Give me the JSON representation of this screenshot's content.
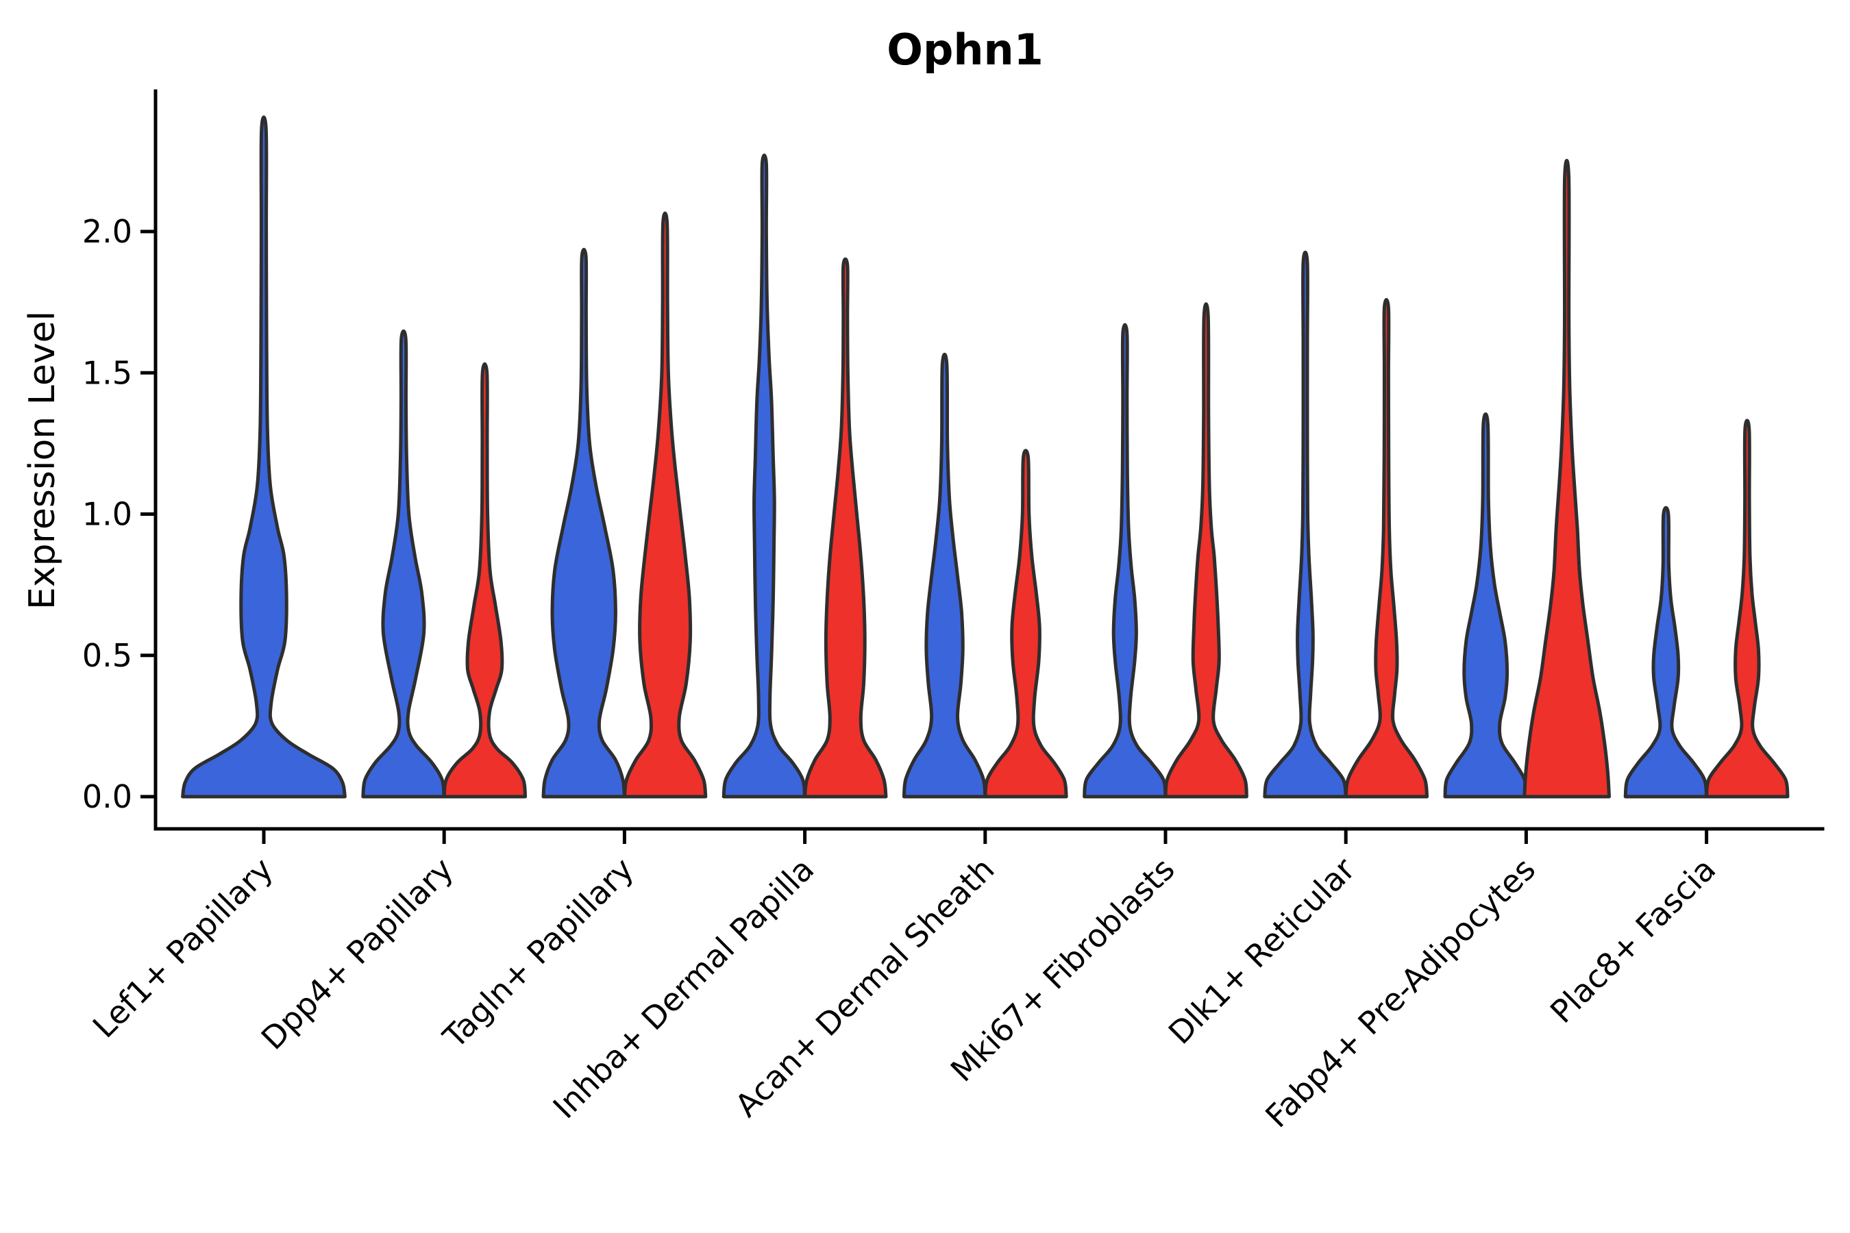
{
  "figure": {
    "title": "Ophn1",
    "y_axis": {
      "label": "Expression Level",
      "tick_labels": [
        "0.0",
        "0.5",
        "1.0",
        "1.5",
        "2.0"
      ]
    }
  },
  "colors": {
    "group_blue": "#3B65DB",
    "group_red": "#EE312B",
    "outline": "#2E2E2E",
    "axis": "#000000"
  },
  "chart_data": {
    "type": "violin",
    "title": "Ophn1",
    "xlabel": "",
    "ylabel": "Expression Level",
    "ylim": [
      -0.115,
      2.5
    ],
    "yticks": [
      0.0,
      0.5,
      1.0,
      1.5,
      2.0
    ],
    "ytick_labels": [
      "0.0",
      "0.5",
      "1.0",
      "1.5",
      "2.0"
    ],
    "x_tick_rotation": 45,
    "grid": false,
    "legend": "none",
    "categories": [
      "Lef1+ Papillary",
      "Dpp4+ Papillary",
      "Tagln+ Papillary",
      "Inhba+ Dermal Papilla",
      "Acan+ Dermal Sheath",
      "Mki67+ Fibroblasts",
      "Dlk1+ Reticular",
      "Fabp4+ Pre-Adipocytes",
      "Plac8+ Fascia"
    ],
    "groups": [
      {
        "id": "blue",
        "color": "#3B65DB"
      },
      {
        "id": "red",
        "color": "#EE312B"
      }
    ],
    "violins": [
      {
        "category": "Lef1+ Papillary",
        "group": "blue",
        "offset": 0.0,
        "half_width": 0.45,
        "max_expression": 2.36,
        "profile": [
          [
            0,
            1.0
          ],
          [
            0.05,
            0.97
          ],
          [
            0.1,
            0.85
          ],
          [
            0.15,
            0.55
          ],
          [
            0.2,
            0.28
          ],
          [
            0.26,
            0.1
          ],
          [
            0.33,
            0.09
          ],
          [
            0.45,
            0.17
          ],
          [
            0.55,
            0.26
          ],
          [
            0.7,
            0.28
          ],
          [
            0.85,
            0.25
          ],
          [
            0.95,
            0.17
          ],
          [
            1.1,
            0.08
          ],
          [
            1.3,
            0.045
          ],
          [
            1.6,
            0.035
          ],
          [
            2.0,
            0.03
          ],
          [
            2.36,
            0.028
          ]
        ]
      },
      {
        "category": "Dpp4+ Papillary",
        "group": "blue",
        "offset": -0.225,
        "half_width": 0.225,
        "max_expression": 1.62,
        "profile": [
          [
            0,
            1.0
          ],
          [
            0.06,
            0.95
          ],
          [
            0.12,
            0.7
          ],
          [
            0.18,
            0.32
          ],
          [
            0.23,
            0.13
          ],
          [
            0.3,
            0.12
          ],
          [
            0.42,
            0.3
          ],
          [
            0.58,
            0.5
          ],
          [
            0.72,
            0.45
          ],
          [
            0.85,
            0.28
          ],
          [
            1.0,
            0.13
          ],
          [
            1.2,
            0.075
          ],
          [
            1.4,
            0.06
          ],
          [
            1.62,
            0.055
          ]
        ]
      },
      {
        "category": "Dpp4+ Papillary",
        "group": "red",
        "offset": 0.225,
        "half_width": 0.225,
        "max_expression": 1.5,
        "profile": [
          [
            0,
            1.0
          ],
          [
            0.06,
            0.95
          ],
          [
            0.12,
            0.68
          ],
          [
            0.17,
            0.3
          ],
          [
            0.22,
            0.12
          ],
          [
            0.3,
            0.12
          ],
          [
            0.38,
            0.28
          ],
          [
            0.45,
            0.42
          ],
          [
            0.55,
            0.4
          ],
          [
            0.68,
            0.26
          ],
          [
            0.8,
            0.13
          ],
          [
            1.0,
            0.07
          ],
          [
            1.25,
            0.06
          ],
          [
            1.5,
            0.055
          ]
        ]
      },
      {
        "category": "Tagln+ Papillary",
        "group": "blue",
        "offset": -0.225,
        "half_width": 0.225,
        "max_expression": 1.91,
        "profile": [
          [
            0,
            1.0
          ],
          [
            0.06,
            0.96
          ],
          [
            0.13,
            0.78
          ],
          [
            0.2,
            0.45
          ],
          [
            0.27,
            0.38
          ],
          [
            0.38,
            0.55
          ],
          [
            0.52,
            0.72
          ],
          [
            0.65,
            0.78
          ],
          [
            0.8,
            0.72
          ],
          [
            0.95,
            0.52
          ],
          [
            1.1,
            0.3
          ],
          [
            1.25,
            0.14
          ],
          [
            1.45,
            0.07
          ],
          [
            1.7,
            0.055
          ],
          [
            1.91,
            0.05
          ]
        ]
      },
      {
        "category": "Tagln+ Papillary",
        "group": "red",
        "offset": 0.225,
        "half_width": 0.225,
        "max_expression": 2.03,
        "profile": [
          [
            0,
            1.0
          ],
          [
            0.06,
            0.95
          ],
          [
            0.13,
            0.72
          ],
          [
            0.2,
            0.4
          ],
          [
            0.28,
            0.35
          ],
          [
            0.4,
            0.52
          ],
          [
            0.55,
            0.62
          ],
          [
            0.7,
            0.6
          ],
          [
            0.85,
            0.5
          ],
          [
            1.0,
            0.38
          ],
          [
            1.15,
            0.26
          ],
          [
            1.3,
            0.16
          ],
          [
            1.5,
            0.08
          ],
          [
            1.75,
            0.06
          ],
          [
            2.03,
            0.05
          ]
        ]
      },
      {
        "category": "Inhba+ Dermal Papilla",
        "group": "blue",
        "offset": -0.225,
        "half_width": 0.225,
        "max_expression": 2.24,
        "profile": [
          [
            0,
            1.0
          ],
          [
            0.06,
            0.95
          ],
          [
            0.12,
            0.7
          ],
          [
            0.18,
            0.35
          ],
          [
            0.25,
            0.16
          ],
          [
            0.35,
            0.14
          ],
          [
            0.5,
            0.18
          ],
          [
            0.7,
            0.22
          ],
          [
            0.9,
            0.24
          ],
          [
            1.05,
            0.25
          ],
          [
            1.2,
            0.22
          ],
          [
            1.4,
            0.18
          ],
          [
            1.55,
            0.12
          ],
          [
            1.75,
            0.07
          ],
          [
            2.0,
            0.05
          ],
          [
            2.24,
            0.045
          ]
        ]
      },
      {
        "category": "Inhba+ Dermal Papilla",
        "group": "red",
        "offset": 0.225,
        "half_width": 0.225,
        "max_expression": 1.88,
        "profile": [
          [
            0,
            1.0
          ],
          [
            0.06,
            0.95
          ],
          [
            0.13,
            0.75
          ],
          [
            0.2,
            0.45
          ],
          [
            0.28,
            0.38
          ],
          [
            0.4,
            0.45
          ],
          [
            0.55,
            0.48
          ],
          [
            0.7,
            0.45
          ],
          [
            0.85,
            0.38
          ],
          [
            1.0,
            0.28
          ],
          [
            1.15,
            0.18
          ],
          [
            1.3,
            0.1
          ],
          [
            1.5,
            0.06
          ],
          [
            1.7,
            0.05
          ],
          [
            1.88,
            0.05
          ]
        ]
      },
      {
        "category": "Acan+ Dermal Sheath",
        "group": "blue",
        "offset": -0.225,
        "half_width": 0.225,
        "max_expression": 1.53,
        "profile": [
          [
            0,
            1.0
          ],
          [
            0.06,
            0.96
          ],
          [
            0.13,
            0.75
          ],
          [
            0.2,
            0.45
          ],
          [
            0.28,
            0.32
          ],
          [
            0.4,
            0.4
          ],
          [
            0.52,
            0.45
          ],
          [
            0.65,
            0.42
          ],
          [
            0.78,
            0.32
          ],
          [
            0.9,
            0.22
          ],
          [
            1.05,
            0.12
          ],
          [
            1.25,
            0.07
          ],
          [
            1.53,
            0.055
          ]
        ]
      },
      {
        "category": "Acan+ Dermal Sheath",
        "group": "red",
        "offset": 0.225,
        "half_width": 0.225,
        "max_expression": 1.2,
        "profile": [
          [
            0,
            1.0
          ],
          [
            0.06,
            0.95
          ],
          [
            0.12,
            0.7
          ],
          [
            0.18,
            0.38
          ],
          [
            0.25,
            0.2
          ],
          [
            0.35,
            0.22
          ],
          [
            0.48,
            0.32
          ],
          [
            0.6,
            0.34
          ],
          [
            0.72,
            0.26
          ],
          [
            0.85,
            0.15
          ],
          [
            1.0,
            0.08
          ],
          [
            1.2,
            0.06
          ]
        ]
      },
      {
        "category": "Mki67+ Fibroblasts",
        "group": "blue",
        "offset": -0.225,
        "half_width": 0.225,
        "max_expression": 1.64,
        "profile": [
          [
            0,
            1.0
          ],
          [
            0.06,
            0.95
          ],
          [
            0.12,
            0.65
          ],
          [
            0.18,
            0.3
          ],
          [
            0.25,
            0.12
          ],
          [
            0.35,
            0.14
          ],
          [
            0.48,
            0.24
          ],
          [
            0.58,
            0.28
          ],
          [
            0.7,
            0.24
          ],
          [
            0.82,
            0.15
          ],
          [
            0.95,
            0.09
          ],
          [
            1.15,
            0.06
          ],
          [
            1.4,
            0.05
          ],
          [
            1.64,
            0.05
          ]
        ]
      },
      {
        "category": "Mki67+ Fibroblasts",
        "group": "red",
        "offset": 0.225,
        "half_width": 0.225,
        "max_expression": 1.7,
        "profile": [
          [
            0,
            1.0
          ],
          [
            0.06,
            0.96
          ],
          [
            0.13,
            0.72
          ],
          [
            0.2,
            0.38
          ],
          [
            0.27,
            0.18
          ],
          [
            0.38,
            0.25
          ],
          [
            0.48,
            0.32
          ],
          [
            0.6,
            0.3
          ],
          [
            0.72,
            0.26
          ],
          [
            0.85,
            0.2
          ],
          [
            0.95,
            0.13
          ],
          [
            1.1,
            0.08
          ],
          [
            1.35,
            0.06
          ],
          [
            1.7,
            0.05
          ]
        ]
      },
      {
        "category": "Dlk1+ Reticular",
        "group": "blue",
        "offset": -0.225,
        "half_width": 0.225,
        "max_expression": 1.89,
        "profile": [
          [
            0,
            1.0
          ],
          [
            0.06,
            0.94
          ],
          [
            0.12,
            0.62
          ],
          [
            0.18,
            0.28
          ],
          [
            0.26,
            0.11
          ],
          [
            0.36,
            0.13
          ],
          [
            0.48,
            0.18
          ],
          [
            0.58,
            0.19
          ],
          [
            0.7,
            0.15
          ],
          [
            0.85,
            0.09
          ],
          [
            1.0,
            0.06
          ],
          [
            1.3,
            0.05
          ],
          [
            1.6,
            0.045
          ],
          [
            1.89,
            0.045
          ]
        ]
      },
      {
        "category": "Dlk1+ Reticular",
        "group": "red",
        "offset": 0.225,
        "half_width": 0.225,
        "max_expression": 1.73,
        "profile": [
          [
            0,
            1.0
          ],
          [
            0.06,
            0.95
          ],
          [
            0.13,
            0.7
          ],
          [
            0.2,
            0.36
          ],
          [
            0.27,
            0.16
          ],
          [
            0.36,
            0.2
          ],
          [
            0.45,
            0.26
          ],
          [
            0.55,
            0.25
          ],
          [
            0.68,
            0.18
          ],
          [
            0.8,
            0.11
          ],
          [
            0.95,
            0.07
          ],
          [
            1.2,
            0.055
          ],
          [
            1.5,
            0.05
          ],
          [
            1.73,
            0.05
          ]
        ]
      },
      {
        "category": "Fabp4+ Pre-Adipocytes",
        "group": "blue",
        "offset": -0.225,
        "half_width": 0.225,
        "max_expression": 1.32,
        "profile": [
          [
            0,
            1.0
          ],
          [
            0.06,
            0.96
          ],
          [
            0.12,
            0.72
          ],
          [
            0.19,
            0.4
          ],
          [
            0.26,
            0.35
          ],
          [
            0.35,
            0.48
          ],
          [
            0.44,
            0.53
          ],
          [
            0.55,
            0.48
          ],
          [
            0.65,
            0.35
          ],
          [
            0.75,
            0.22
          ],
          [
            0.88,
            0.12
          ],
          [
            1.05,
            0.07
          ],
          [
            1.32,
            0.055
          ]
        ]
      },
      {
        "category": "Fabp4+ Pre-Adipocytes",
        "group": "red",
        "offset": 0.225,
        "half_width": 0.235,
        "max_expression": 2.19,
        "profile": [
          [
            0,
            1.0
          ],
          [
            0.08,
            0.97
          ],
          [
            0.18,
            0.9
          ],
          [
            0.3,
            0.78
          ],
          [
            0.42,
            0.62
          ],
          [
            0.55,
            0.5
          ],
          [
            0.68,
            0.38
          ],
          [
            0.8,
            0.3
          ],
          [
            0.95,
            0.25
          ],
          [
            1.1,
            0.18
          ],
          [
            1.25,
            0.12
          ],
          [
            1.45,
            0.07
          ],
          [
            1.7,
            0.05
          ],
          [
            2.19,
            0.045
          ]
        ]
      },
      {
        "category": "Plac8+ Fascia",
        "group": "blue",
        "offset": -0.225,
        "half_width": 0.225,
        "max_expression": 1.0,
        "profile": [
          [
            0,
            1.0
          ],
          [
            0.06,
            0.95
          ],
          [
            0.12,
            0.68
          ],
          [
            0.18,
            0.34
          ],
          [
            0.24,
            0.15
          ],
          [
            0.32,
            0.2
          ],
          [
            0.42,
            0.3
          ],
          [
            0.5,
            0.3
          ],
          [
            0.6,
            0.22
          ],
          [
            0.7,
            0.12
          ],
          [
            0.82,
            0.07
          ],
          [
            1.0,
            0.06
          ]
        ]
      },
      {
        "category": "Plac8+ Fascia",
        "group": "red",
        "offset": 0.225,
        "half_width": 0.225,
        "max_expression": 1.3,
        "profile": [
          [
            0,
            1.0
          ],
          [
            0.06,
            0.95
          ],
          [
            0.12,
            0.66
          ],
          [
            0.18,
            0.32
          ],
          [
            0.24,
            0.14
          ],
          [
            0.32,
            0.18
          ],
          [
            0.42,
            0.28
          ],
          [
            0.52,
            0.28
          ],
          [
            0.62,
            0.2
          ],
          [
            0.72,
            0.12
          ],
          [
            0.85,
            0.07
          ],
          [
            1.05,
            0.055
          ],
          [
            1.3,
            0.05
          ]
        ]
      }
    ]
  }
}
